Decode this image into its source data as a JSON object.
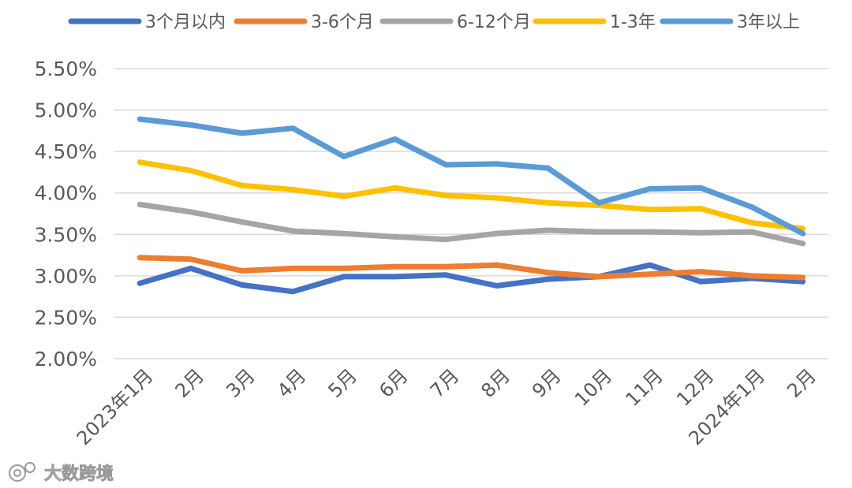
{
  "chart_data": {
    "type": "line",
    "title": "",
    "xlabel": "",
    "ylabel": "",
    "ylim": [
      2.0,
      5.5
    ],
    "y_ticks": [
      "2.00%",
      "2.50%",
      "3.00%",
      "3.50%",
      "4.00%",
      "4.50%",
      "5.00%",
      "5.50%"
    ],
    "grid": true,
    "legend_position": "top",
    "categories": [
      "2023年1月",
      "2月",
      "3月",
      "4月",
      "5月",
      "6月",
      "7月",
      "8月",
      "9月",
      "10月",
      "11月",
      "12月",
      "2024年1月",
      "2月"
    ],
    "series": [
      {
        "name": "3个月以内",
        "color": "#4472C4",
        "values": [
          2.91,
          3.09,
          2.89,
          2.81,
          2.99,
          2.99,
          3.01,
          2.88,
          2.96,
          2.99,
          3.13,
          2.93,
          2.97,
          2.93
        ]
      },
      {
        "name": "3-6个月",
        "color": "#ED7D31",
        "values": [
          3.22,
          3.2,
          3.06,
          3.09,
          3.09,
          3.11,
          3.11,
          3.13,
          3.04,
          2.99,
          3.02,
          3.05,
          3.0,
          2.98
        ]
      },
      {
        "name": "6-12个月",
        "color": "#A5A5A5",
        "values": [
          3.86,
          3.77,
          3.65,
          3.54,
          3.51,
          3.47,
          3.44,
          3.51,
          3.55,
          3.53,
          3.53,
          3.52,
          3.53,
          3.39
        ]
      },
      {
        "name": "1-3年",
        "color": "#FFC000",
        "values": [
          4.37,
          4.27,
          4.09,
          4.04,
          3.96,
          4.06,
          3.97,
          3.94,
          3.88,
          3.85,
          3.8,
          3.81,
          3.64,
          3.57
        ]
      },
      {
        "name": "3年以上",
        "color": "#5B9BD5",
        "values": [
          4.89,
          4.82,
          4.72,
          4.78,
          4.44,
          4.65,
          4.34,
          4.35,
          4.3,
          3.88,
          4.05,
          4.06,
          3.83,
          3.51
        ]
      }
    ]
  },
  "watermark": {
    "text": "大数跨境"
  }
}
